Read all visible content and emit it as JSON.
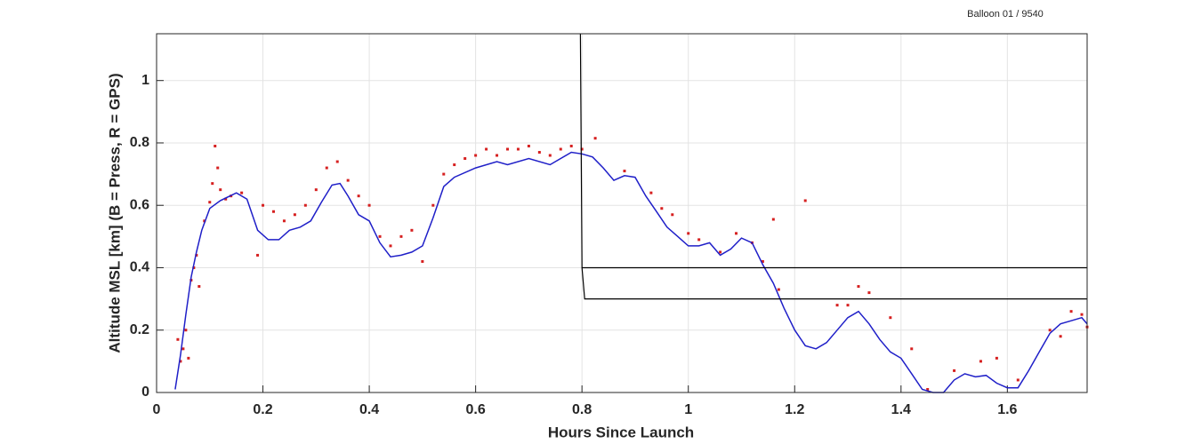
{
  "chart_data": {
    "type": "line",
    "title": "Balloon 01 / 9540",
    "x_label": "Hours Since Launch",
    "y_label": "Altitude MSL [km]   (B = Press, R = GPS)",
    "xlim": [
      0,
      1.75
    ],
    "ylim": [
      0,
      1.15
    ],
    "xticks": [
      0,
      0.2,
      0.4,
      0.6,
      0.8,
      1,
      1.2,
      1.4,
      1.6
    ],
    "yticks": [
      0,
      0.2,
      0.4,
      0.6,
      0.8,
      1
    ],
    "grid": true,
    "series": [
      {
        "color": "#d62020",
        "mode": "markers",
        "x": [
          0.04,
          0.045,
          0.05,
          0.055,
          0.06,
          0.065,
          0.07,
          0.075,
          0.08,
          0.09,
          0.1,
          0.105,
          0.11,
          0.115,
          0.12,
          0.13,
          0.14,
          0.16,
          0.19,
          0.2,
          0.22,
          0.24,
          0.26,
          0.28,
          0.3,
          0.32,
          0.34,
          0.36,
          0.38,
          0.4,
          0.42,
          0.44,
          0.46,
          0.48,
          0.5,
          0.52,
          0.54,
          0.56,
          0.58,
          0.6,
          0.62,
          0.64,
          0.66,
          0.68,
          0.7,
          0.72,
          0.74,
          0.76,
          0.78,
          0.8,
          0.825,
          0.88,
          0.93,
          0.95,
          0.97,
          1.0,
          1.02,
          1.06,
          1.09,
          1.12,
          1.14,
          1.16,
          1.17,
          1.22,
          1.28,
          1.3,
          1.32,
          1.34,
          1.38,
          1.42,
          1.45,
          1.5,
          1.55,
          1.58,
          1.62,
          1.68,
          1.7,
          1.72,
          1.74,
          1.75
        ],
        "values": [
          0.17,
          0.1,
          0.14,
          0.2,
          0.11,
          0.36,
          0.4,
          0.44,
          0.34,
          0.55,
          0.61,
          0.67,
          0.79,
          0.72,
          0.65,
          0.62,
          0.63,
          0.64,
          0.44,
          0.6,
          0.58,
          0.55,
          0.57,
          0.6,
          0.65,
          0.72,
          0.74,
          0.68,
          0.63,
          0.6,
          0.5,
          0.47,
          0.5,
          0.52,
          0.42,
          0.6,
          0.7,
          0.73,
          0.75,
          0.76,
          0.78,
          0.76,
          0.78,
          0.78,
          0.79,
          0.77,
          0.76,
          0.78,
          0.79,
          0.78,
          0.815,
          0.71,
          0.64,
          0.59,
          0.57,
          0.51,
          0.49,
          0.45,
          0.51,
          0.48,
          0.42,
          0.555,
          0.33,
          0.615,
          0.28,
          0.28,
          0.34,
          0.32,
          0.24,
          0.14,
          0.01,
          0.07,
          0.1,
          0.11,
          0.04,
          0.2,
          0.18,
          0.26,
          0.25,
          0.21
        ]
      },
      {
        "color": "#1f1fc8",
        "mode": "line",
        "x": [
          0.035,
          0.045,
          0.055,
          0.065,
          0.075,
          0.085,
          0.1,
          0.12,
          0.15,
          0.17,
          0.19,
          0.21,
          0.23,
          0.25,
          0.27,
          0.29,
          0.31,
          0.33,
          0.345,
          0.36,
          0.38,
          0.4,
          0.42,
          0.44,
          0.46,
          0.48,
          0.5,
          0.52,
          0.54,
          0.56,
          0.6,
          0.64,
          0.66,
          0.7,
          0.74,
          0.78,
          0.8,
          0.82,
          0.84,
          0.86,
          0.88,
          0.9,
          0.92,
          0.94,
          0.96,
          0.98,
          1.0,
          1.02,
          1.04,
          1.06,
          1.08,
          1.1,
          1.12,
          1.14,
          1.16,
          1.18,
          1.2,
          1.22,
          1.24,
          1.26,
          1.28,
          1.3,
          1.32,
          1.34,
          1.36,
          1.38,
          1.4,
          1.42,
          1.44,
          1.46,
          1.48,
          1.5,
          1.52,
          1.54,
          1.56,
          1.58,
          1.6,
          1.62,
          1.64,
          1.66,
          1.68,
          1.7,
          1.72,
          1.74,
          1.75
        ],
        "values": [
          0.01,
          0.12,
          0.25,
          0.37,
          0.45,
          0.52,
          0.59,
          0.615,
          0.64,
          0.62,
          0.52,
          0.49,
          0.49,
          0.52,
          0.53,
          0.55,
          0.61,
          0.665,
          0.67,
          0.63,
          0.57,
          0.55,
          0.48,
          0.435,
          0.44,
          0.45,
          0.47,
          0.56,
          0.66,
          0.69,
          0.72,
          0.74,
          0.73,
          0.75,
          0.73,
          0.77,
          0.765,
          0.755,
          0.72,
          0.68,
          0.695,
          0.69,
          0.63,
          0.58,
          0.53,
          0.5,
          0.47,
          0.47,
          0.48,
          0.44,
          0.46,
          0.495,
          0.48,
          0.41,
          0.35,
          0.27,
          0.2,
          0.15,
          0.14,
          0.16,
          0.2,
          0.24,
          0.26,
          0.22,
          0.17,
          0.13,
          0.11,
          0.06,
          0.01,
          0.0,
          0.0,
          0.04,
          0.06,
          0.05,
          0.055,
          0.03,
          0.015,
          0.015,
          0.07,
          0.13,
          0.19,
          0.22,
          0.23,
          0.24,
          0.22
        ]
      },
      {
        "color": "#000000",
        "mode": "line",
        "x": [
          0.797,
          0.8,
          1.75
        ],
        "values": [
          1.15,
          0.4,
          0.4
        ]
      },
      {
        "color": "#000000",
        "mode": "line",
        "x": [
          0.8,
          0.805,
          1.75
        ],
        "values": [
          0.4,
          0.3,
          0.3
        ]
      }
    ]
  }
}
